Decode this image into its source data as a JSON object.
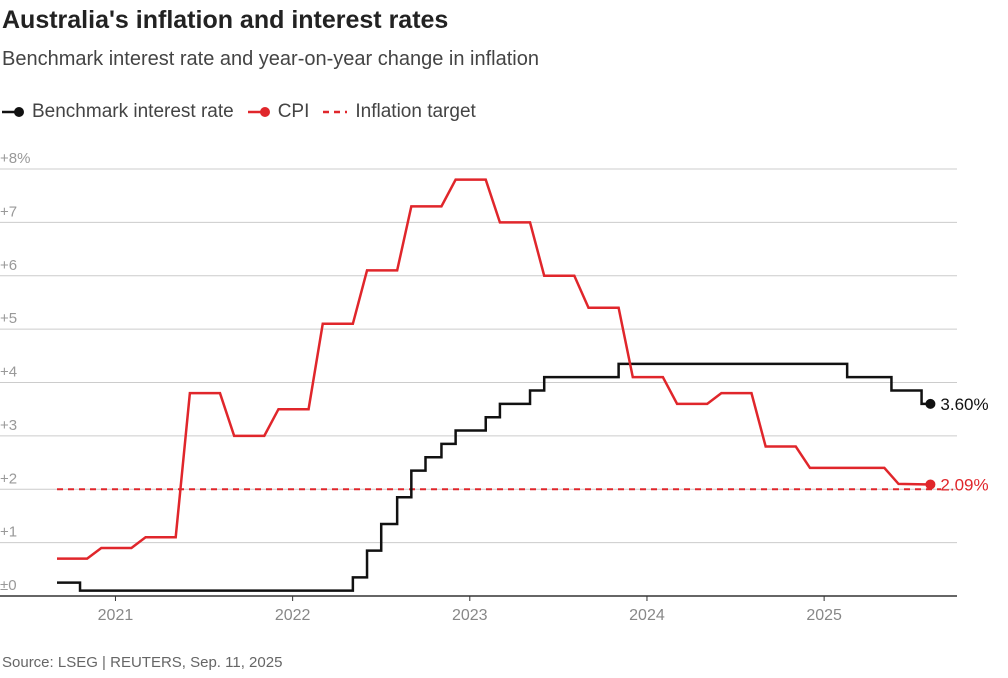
{
  "colors": {
    "interest": "#111111",
    "cpi": "#e0262b",
    "target": "#e0262b",
    "grid": "#cccccc",
    "axis": "#333333"
  },
  "chart_data": {
    "type": "line",
    "title": "Australia's inflation and interest rates",
    "subtitle": "Benchmark interest rate and year-on-year change in inflation",
    "source": "Source: LSEG | REUTERS, Sep. 11, 2025",
    "legend": {
      "placement": "top-left",
      "items": [
        {
          "label": "Benchmark interest rate",
          "style": "line-dot",
          "color": "interest"
        },
        {
          "label": "CPI",
          "style": "line-dot",
          "color": "cpi"
        },
        {
          "label": "Inflation target",
          "style": "dashed",
          "color": "target"
        }
      ]
    },
    "xlim": [
      2020.67,
      2025.75
    ],
    "ylim": [
      0,
      8
    ],
    "grid": true,
    "x_ticks": [
      {
        "value": 2021,
        "label": "2021"
      },
      {
        "value": 2022,
        "label": "2022"
      },
      {
        "value": 2023,
        "label": "2023"
      },
      {
        "value": 2024,
        "label": "2024"
      },
      {
        "value": 2025,
        "label": "2025"
      }
    ],
    "y_ticks": [
      {
        "value": 0,
        "label": "±0"
      },
      {
        "value": 1,
        "label": "+1"
      },
      {
        "value": 2,
        "label": "+2"
      },
      {
        "value": 3,
        "label": "+3"
      },
      {
        "value": 4,
        "label": "+4"
      },
      {
        "value": 5,
        "label": "+5"
      },
      {
        "value": 6,
        "label": "+6"
      },
      {
        "value": 7,
        "label": "+7"
      },
      {
        "value": 8,
        "label": "+8%"
      }
    ],
    "series": [
      {
        "name": "Benchmark interest rate",
        "color": "interest",
        "step": true,
        "end_label": "3.60%",
        "points": [
          [
            2020.67,
            0.25
          ],
          [
            2020.8,
            0.1
          ],
          [
            2022.34,
            0.35
          ],
          [
            2022.42,
            0.85
          ],
          [
            2022.5,
            1.35
          ],
          [
            2022.59,
            1.85
          ],
          [
            2022.67,
            2.35
          ],
          [
            2022.75,
            2.6
          ],
          [
            2022.84,
            2.85
          ],
          [
            2022.92,
            3.1
          ],
          [
            2023.09,
            3.35
          ],
          [
            2023.17,
            3.6
          ],
          [
            2023.34,
            3.85
          ],
          [
            2023.42,
            4.1
          ],
          [
            2023.84,
            4.35
          ],
          [
            2025.13,
            4.1
          ],
          [
            2025.38,
            3.85
          ],
          [
            2025.55,
            3.6
          ],
          [
            2025.6,
            3.6
          ]
        ]
      },
      {
        "name": "CPI",
        "color": "cpi",
        "step": false,
        "end_label": "2.09%",
        "points": [
          [
            2020.67,
            0.7
          ],
          [
            2020.84,
            0.7
          ],
          [
            2020.92,
            0.9
          ],
          [
            2021.09,
            0.9
          ],
          [
            2021.17,
            1.1
          ],
          [
            2021.34,
            1.1
          ],
          [
            2021.42,
            3.8
          ],
          [
            2021.59,
            3.8
          ],
          [
            2021.67,
            3.0
          ],
          [
            2021.84,
            3.0
          ],
          [
            2021.92,
            3.5
          ],
          [
            2022.09,
            3.5
          ],
          [
            2022.17,
            5.1
          ],
          [
            2022.34,
            5.1
          ],
          [
            2022.42,
            6.1
          ],
          [
            2022.59,
            6.1
          ],
          [
            2022.67,
            7.3
          ],
          [
            2022.84,
            7.3
          ],
          [
            2022.92,
            7.8
          ],
          [
            2023.09,
            7.8
          ],
          [
            2023.17,
            7.0
          ],
          [
            2023.34,
            7.0
          ],
          [
            2023.42,
            6.0
          ],
          [
            2023.59,
            6.0
          ],
          [
            2023.67,
            5.4
          ],
          [
            2023.84,
            5.4
          ],
          [
            2023.92,
            4.1
          ],
          [
            2024.09,
            4.1
          ],
          [
            2024.17,
            3.6
          ],
          [
            2024.34,
            3.6
          ],
          [
            2024.42,
            3.8
          ],
          [
            2024.59,
            3.8
          ],
          [
            2024.67,
            2.8
          ],
          [
            2024.84,
            2.8
          ],
          [
            2024.92,
            2.4
          ],
          [
            2025.09,
            2.4
          ],
          [
            2025.17,
            2.4
          ],
          [
            2025.34,
            2.4
          ],
          [
            2025.42,
            2.1
          ],
          [
            2025.6,
            2.09
          ]
        ]
      }
    ],
    "reference_lines": [
      {
        "name": "Inflation target",
        "y": 2,
        "style": "dashed",
        "color": "target"
      }
    ]
  }
}
